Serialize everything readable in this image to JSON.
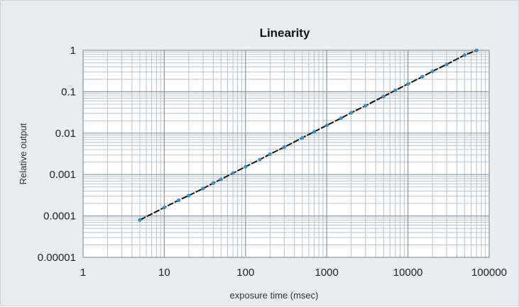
{
  "chart_data": {
    "type": "scatter",
    "title": "Linearity",
    "xlabel": "exposure time (msec)",
    "ylabel": "Relative output",
    "x_scale": "log",
    "y_scale": "log",
    "xlim": [
      1,
      100000
    ],
    "ylim": [
      1e-05,
      1
    ],
    "x_ticks": [
      "1",
      "10",
      "100",
      "1000",
      "10000",
      "100000"
    ],
    "y_ticks": [
      "1",
      "0.1",
      "0.01",
      "0.001",
      "0.0001",
      "0.00001"
    ],
    "grid": true,
    "legend": "none",
    "series": [
      {
        "marker_color": "#3a8fc4",
        "line_color": "#111111",
        "x": [
          5,
          10,
          15,
          20,
          30,
          40,
          50,
          70,
          100,
          150,
          200,
          300,
          500,
          700,
          1000,
          1500,
          2000,
          3000,
          5000,
          7000,
          10000,
          15000,
          20000,
          30000,
          50000,
          70000
        ],
        "y": [
          8e-05,
          0.00016,
          0.00024,
          0.00031,
          0.00046,
          0.00062,
          0.00077,
          0.00108,
          0.00154,
          0.0023,
          0.0031,
          0.0046,
          0.0077,
          0.0108,
          0.0154,
          0.023,
          0.031,
          0.046,
          0.077,
          0.108,
          0.154,
          0.23,
          0.31,
          0.46,
          0.77,
          1.0
        ]
      }
    ]
  }
}
